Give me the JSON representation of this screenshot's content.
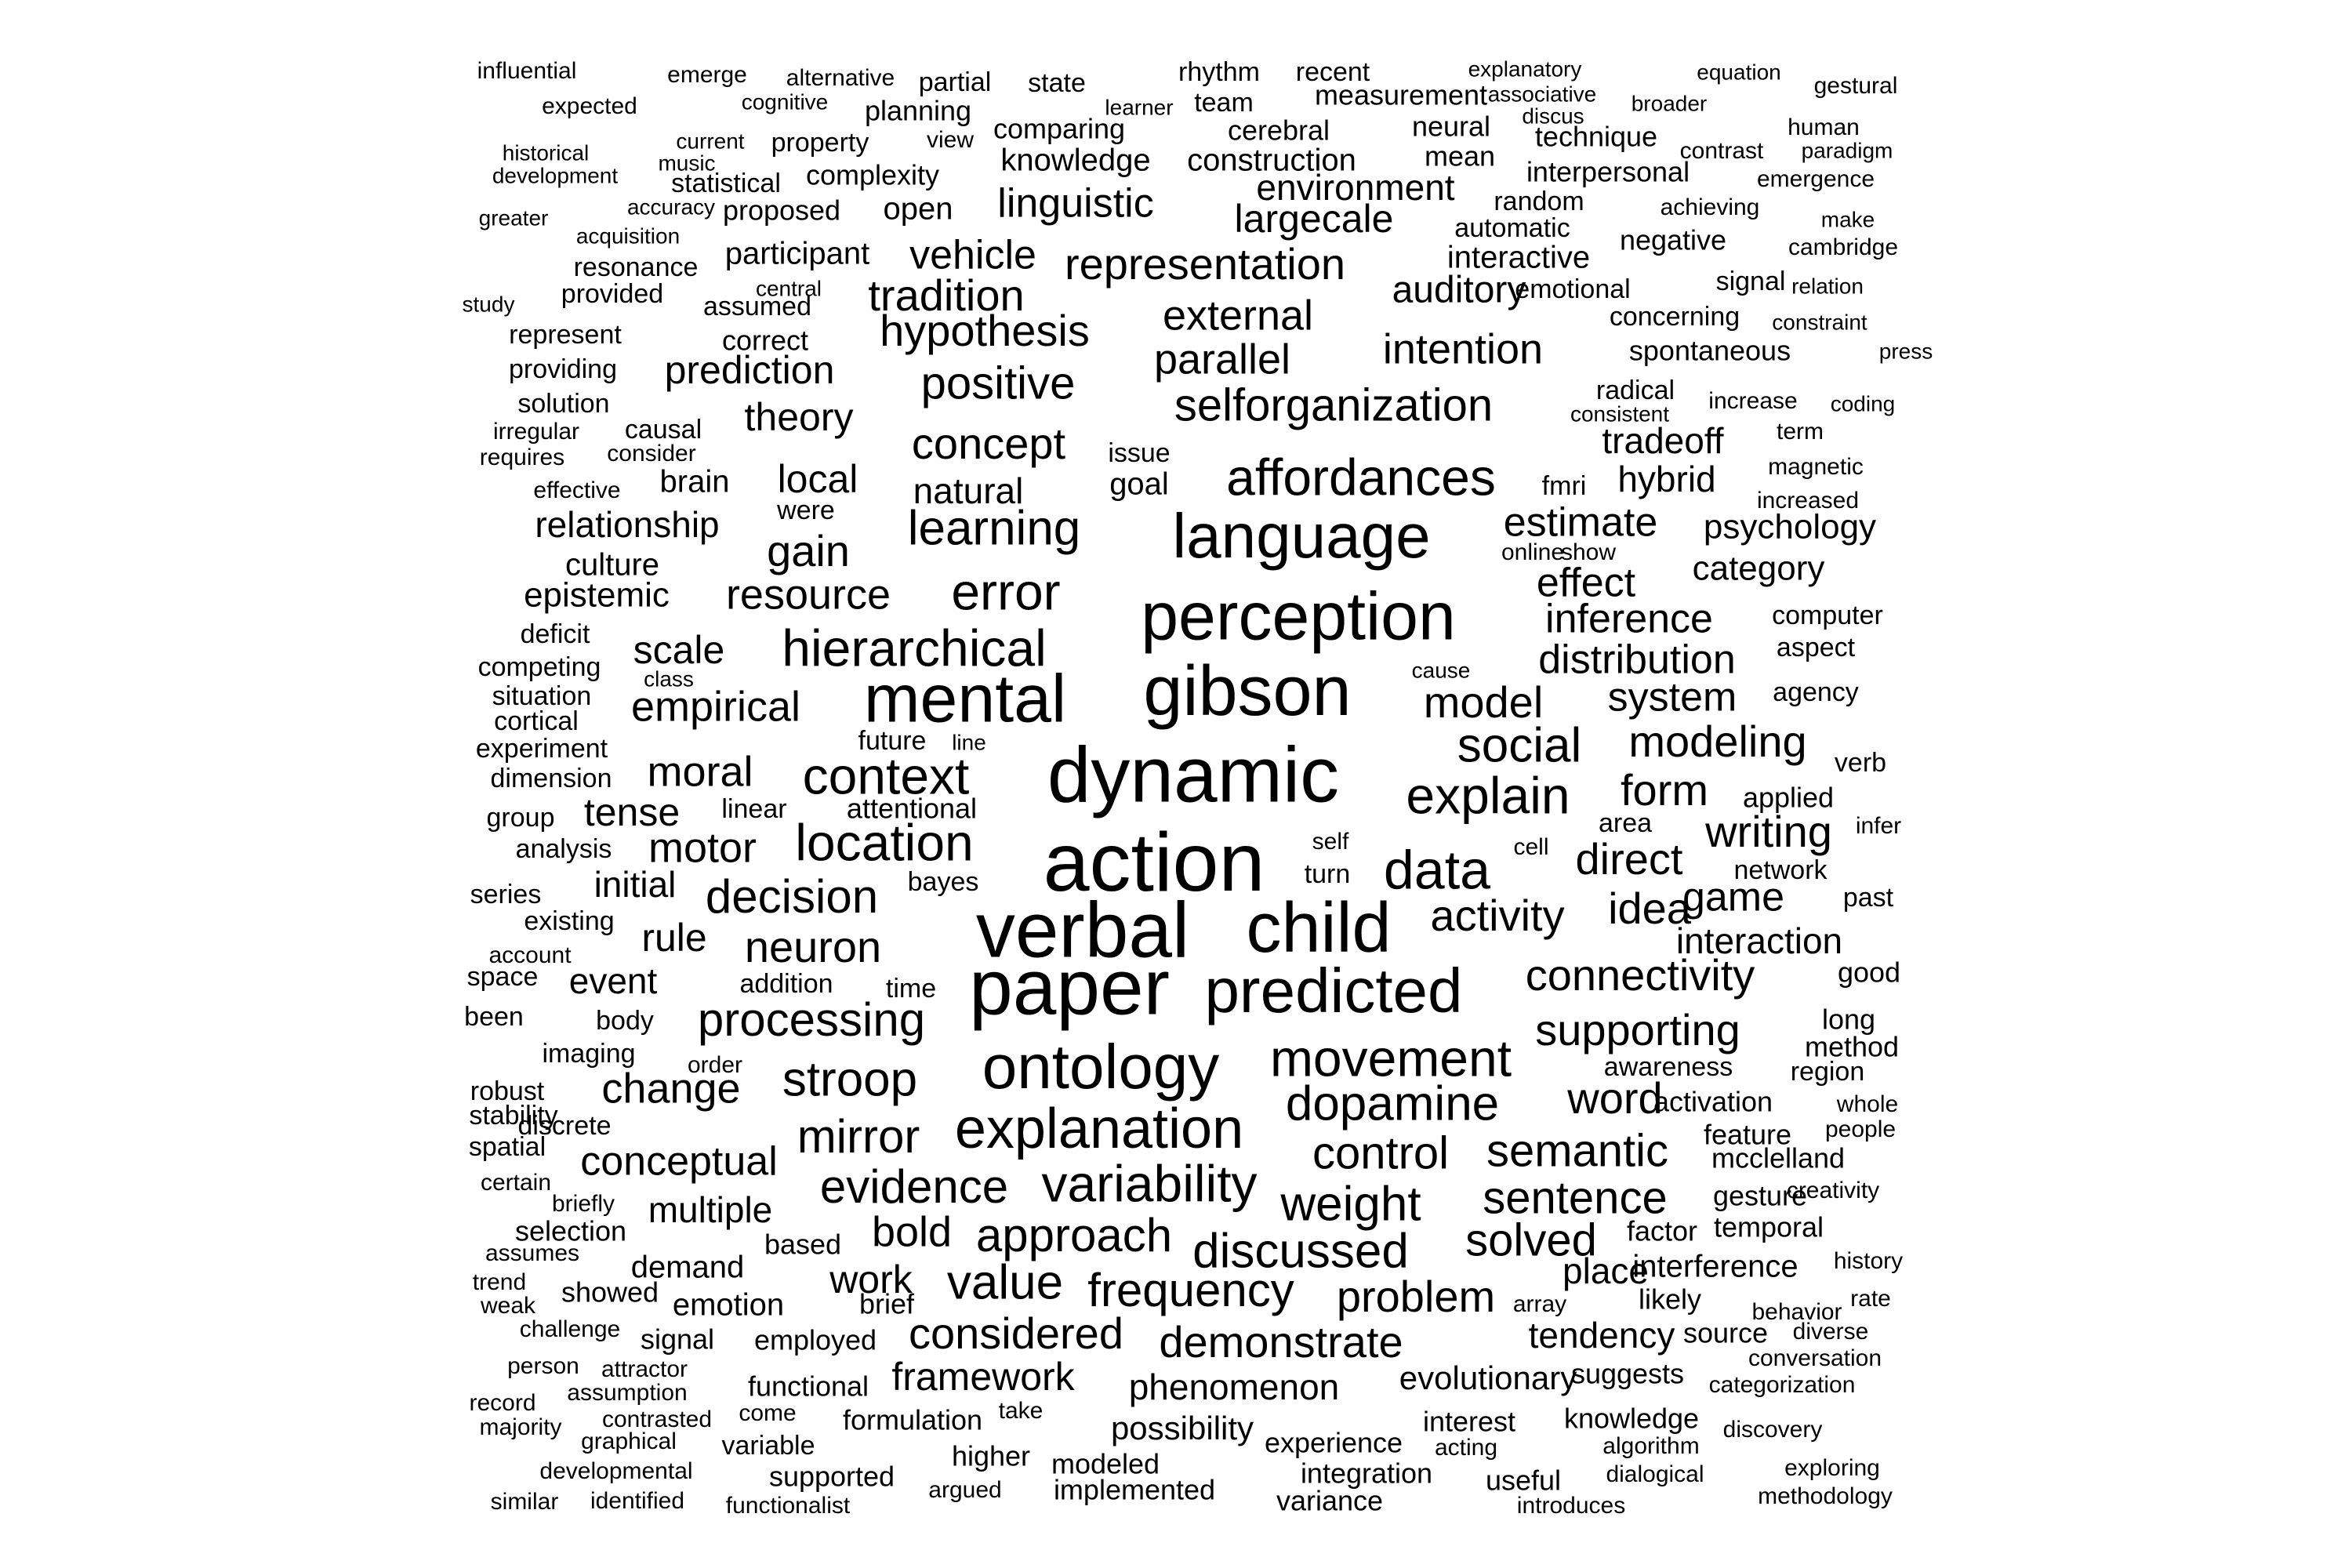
{
  "words": [
    "influential",
    "emerge",
    "alternative",
    "partial",
    "state",
    "rhythm",
    "recent",
    "explanatory",
    "equation",
    "gestural",
    "expected",
    "cognitive",
    "planning",
    "learner",
    "team",
    "measurement",
    "associative",
    "discus",
    "broader",
    "historical",
    "current",
    "music",
    "property",
    "view",
    "comparing",
    "cerebral",
    "neural",
    "technique",
    "human",
    "contrast",
    "paradigm",
    "development",
    "statistical",
    "complexity",
    "knowledge",
    "construction",
    "mean",
    "interpersonal",
    "emergence",
    "greater",
    "accuracy",
    "proposed",
    "open",
    "linguistic",
    "environment",
    "random",
    "achieving",
    "make",
    "acquisition",
    "largecale",
    "automatic",
    "negative",
    "cambridge",
    "resonance",
    "participant",
    "vehicle",
    "representation",
    "interactive",
    "study",
    "provided",
    "central",
    "tradition",
    "auditory",
    "emotional",
    "signal",
    "relation",
    "assumed",
    "external",
    "concerning",
    "constraint",
    "represent",
    "correct",
    "hypothesis",
    "intention",
    "spontaneous",
    "press",
    "providing",
    "prediction",
    "parallel",
    "solution",
    "theory",
    "positive",
    "selforganization",
    "radical",
    "increase",
    "coding",
    "irregular",
    "causal",
    "consistent",
    "term",
    "requires",
    "consider",
    "concept",
    "issue",
    "tradeoff",
    "magnetic",
    "effective",
    "brain",
    "local",
    "natural",
    "goal",
    "affordances",
    "fmri",
    "hybrid",
    "increased",
    "were",
    "relationship",
    "learning",
    "language",
    "estimate",
    "psychology",
    "gain",
    "online",
    "show",
    "culture",
    "category",
    "epistemic",
    "resource",
    "error",
    "effect",
    "deficit",
    "perception",
    "inference",
    "computer",
    "scale",
    "hierarchical",
    "aspect",
    "competing",
    "class",
    "cause",
    "distribution",
    "situation",
    "mental",
    "gibson",
    "agency",
    "model",
    "system",
    "cortical",
    "empirical",
    "future",
    "line",
    "experiment",
    "modeling",
    "social",
    "dimension",
    "moral",
    "verb",
    "context",
    "dynamic",
    "explain",
    "form",
    "applied",
    "group",
    "tense",
    "attentional",
    "linear",
    "area",
    "infer",
    "analysis",
    "writing",
    "cell",
    "motor",
    "location",
    "self",
    "turn",
    "direct",
    "data",
    "network",
    "initial",
    "bayes",
    "series",
    "decision",
    "game",
    "past",
    "idea",
    "existing",
    "action",
    "activity",
    "rule",
    "account",
    "interaction",
    "neuron",
    "verbal",
    "child",
    "space",
    "event",
    "addition",
    "time",
    "connectivity",
    "good",
    "been",
    "body",
    "paper",
    "predicted",
    "processing",
    "long",
    "method",
    "imaging",
    "supporting",
    "order",
    "region",
    "robust",
    "awareness",
    "stability",
    "stroop",
    "ontology",
    "movement",
    "whole",
    "discrete",
    "change",
    "activation",
    "word",
    "people",
    "spatial",
    "feature",
    "dopamine",
    "mcclelland",
    "mirror",
    "explanation",
    "conceptual",
    "control",
    "semantic",
    "certain",
    "briefly",
    "creativity",
    "evidence",
    "variability",
    "gesture",
    "selection",
    "multiple",
    "weight",
    "sentence",
    "assumes",
    "bold",
    "temporal",
    "based",
    "approach",
    "factor",
    "history",
    "trend",
    "demand",
    "discussed",
    "solved",
    "interference",
    "weak",
    "showed",
    "work",
    "value",
    "place",
    "array",
    "rate",
    "likely",
    "emotion",
    "brief",
    "frequency",
    "problem",
    "behavior",
    "challenge",
    "considered",
    "tendency",
    "source",
    "diverse",
    "signal",
    "employed",
    "demonstrate",
    "person",
    "attractor",
    "framework",
    "conversation",
    "functional",
    "phenomenon",
    "evolutionary",
    "suggests",
    "categorization",
    "record",
    "assumption",
    "come",
    "take",
    "majority",
    "contrasted",
    "formulation",
    "interest",
    "knowledge",
    "discovery",
    "graphical",
    "variable",
    "possibility",
    "experience",
    "acting",
    "algorithm",
    "developmental",
    "higher",
    "modeled",
    "supported",
    "integration",
    "useful",
    "dialogical",
    "exploring",
    "argued",
    "implemented",
    "similar",
    "identified",
    "functionalist",
    "variance",
    "introduces",
    "methodology"
  ]
}
